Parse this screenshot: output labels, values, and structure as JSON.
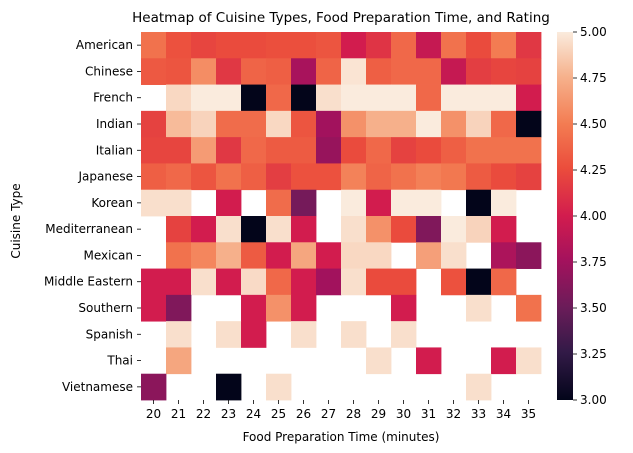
{
  "chart_data": {
    "type": "heatmap",
    "title": "Heatmap of Cuisine Types, Food Preparation Time, and Rating",
    "xlabel": "Food Preparation Time (minutes)",
    "ylabel": "Cuisine Type",
    "x": [
      "20",
      "21",
      "22",
      "23",
      "24",
      "25",
      "26",
      "27",
      "28",
      "29",
      "30",
      "31",
      "32",
      "33",
      "34",
      "35"
    ],
    "y": [
      "American",
      "Chinese",
      "French",
      "Indian",
      "Italian",
      "Japanese",
      "Korean",
      "Mediterranean",
      "Mexican",
      "Middle Eastern",
      "Southern",
      "Spanish",
      "Thai",
      "Vietnamese"
    ],
    "values": [
      [
        4.45,
        4.28,
        4.22,
        4.25,
        4.25,
        4.27,
        4.27,
        4.3,
        4.0,
        4.13,
        4.4,
        3.93,
        4.45,
        4.25,
        4.5,
        4.15
      ],
      [
        4.32,
        4.3,
        4.58,
        4.15,
        4.38,
        4.35,
        3.78,
        4.38,
        4.97,
        4.35,
        4.4,
        4.4,
        3.93,
        4.18,
        4.22,
        4.2
      ],
      [
        null,
        4.92,
        5.0,
        5.0,
        3.0,
        4.4,
        3.0,
        4.95,
        5.0,
        5.0,
        5.0,
        4.4,
        5.0,
        5.0,
        5.0,
        4.0
      ],
      [
        4.2,
        4.8,
        4.9,
        4.42,
        4.42,
        4.92,
        4.3,
        3.75,
        4.6,
        4.75,
        4.75,
        5.0,
        4.6,
        4.9,
        4.4,
        3.0
      ],
      [
        4.22,
        4.22,
        4.65,
        4.15,
        4.4,
        4.33,
        4.33,
        3.7,
        4.25,
        4.4,
        4.2,
        4.25,
        4.35,
        4.45,
        4.45,
        4.45
      ],
      [
        4.35,
        4.4,
        4.3,
        4.45,
        4.35,
        4.18,
        4.28,
        4.28,
        4.53,
        4.38,
        4.45,
        4.52,
        4.48,
        4.33,
        4.25,
        4.2
      ],
      [
        4.95,
        4.95,
        null,
        4.0,
        null,
        4.42,
        3.55,
        null,
        5.0,
        4.0,
        5.0,
        5.0,
        null,
        3.0,
        5.0,
        null
      ],
      [
        null,
        4.2,
        4.0,
        4.95,
        3.0,
        4.95,
        4.0,
        null,
        4.95,
        4.6,
        4.25,
        3.6,
        5.0,
        4.9,
        4.0,
        null
      ],
      [
        null,
        4.45,
        4.55,
        4.75,
        4.33,
        4.0,
        4.7,
        4.0,
        4.92,
        4.92,
        null,
        4.67,
        4.95,
        null,
        3.8,
        3.65
      ],
      [
        4.0,
        4.0,
        4.95,
        4.0,
        4.93,
        4.4,
        4.0,
        3.75,
        4.95,
        4.25,
        4.25,
        null,
        4.28,
        3.0,
        4.4,
        null
      ],
      [
        4.0,
        3.6,
        null,
        null,
        4.0,
        4.6,
        4.0,
        null,
        null,
        null,
        4.0,
        null,
        null,
        4.95,
        null,
        4.45
      ],
      [
        null,
        4.95,
        null,
        4.95,
        4.0,
        null,
        4.95,
        null,
        4.95,
        null,
        4.95,
        null,
        null,
        null,
        null,
        null
      ],
      [
        null,
        4.7,
        null,
        null,
        null,
        null,
        null,
        null,
        null,
        4.95,
        null,
        4.0,
        null,
        null,
        4.0,
        4.95
      ],
      [
        3.65,
        null,
        null,
        3.0,
        null,
        4.95,
        null,
        null,
        null,
        null,
        null,
        null,
        null,
        4.95,
        null,
        null
      ]
    ],
    "colorbar": {
      "min": 3.0,
      "max": 5.0,
      "ticks": [
        "3.00",
        "3.25",
        "3.50",
        "3.75",
        "4.00",
        "4.25",
        "4.50",
        "4.75",
        "5.00"
      ]
    }
  }
}
